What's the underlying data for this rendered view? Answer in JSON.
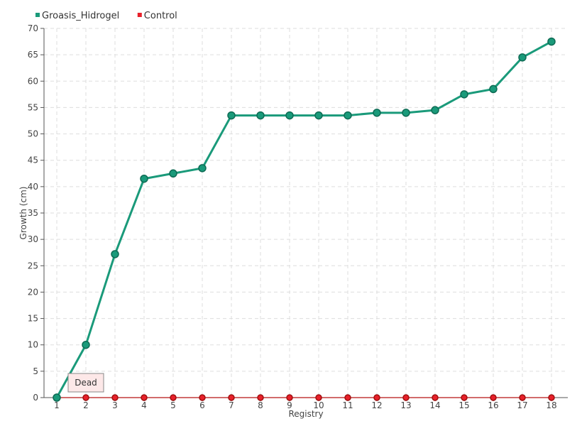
{
  "chart_data": {
    "type": "line",
    "xlabel": "Registry",
    "ylabel": "Growth (cm)",
    "categories": [
      "1",
      "2",
      "3",
      "4",
      "5",
      "6",
      "7",
      "8",
      "9",
      "10",
      "11",
      "12",
      "13",
      "14",
      "15",
      "16",
      "17",
      "18"
    ],
    "ylim": [
      0,
      70
    ],
    "yticks": [
      0,
      5,
      10,
      15,
      20,
      25,
      30,
      35,
      40,
      45,
      50,
      55,
      60,
      65,
      70
    ],
    "grid": true,
    "legend_position": "top-left",
    "series": [
      {
        "name": "Groasis_Hidrogel",
        "color": "#1a9a7a",
        "values": [
          0,
          10,
          27.2,
          41.5,
          42.5,
          43.5,
          53.5,
          53.5,
          53.5,
          53.5,
          53.5,
          54,
          54,
          54.5,
          57.5,
          58.5,
          64.5,
          67.5
        ]
      },
      {
        "name": "Control",
        "color": "#e8202a",
        "values": [
          0,
          0,
          0,
          0,
          0,
          0,
          0,
          0,
          0,
          0,
          0,
          0,
          0,
          0,
          0,
          0,
          0,
          0
        ]
      }
    ],
    "annotations": [
      {
        "text": "Dead",
        "category": "2",
        "series": "Control"
      }
    ]
  }
}
